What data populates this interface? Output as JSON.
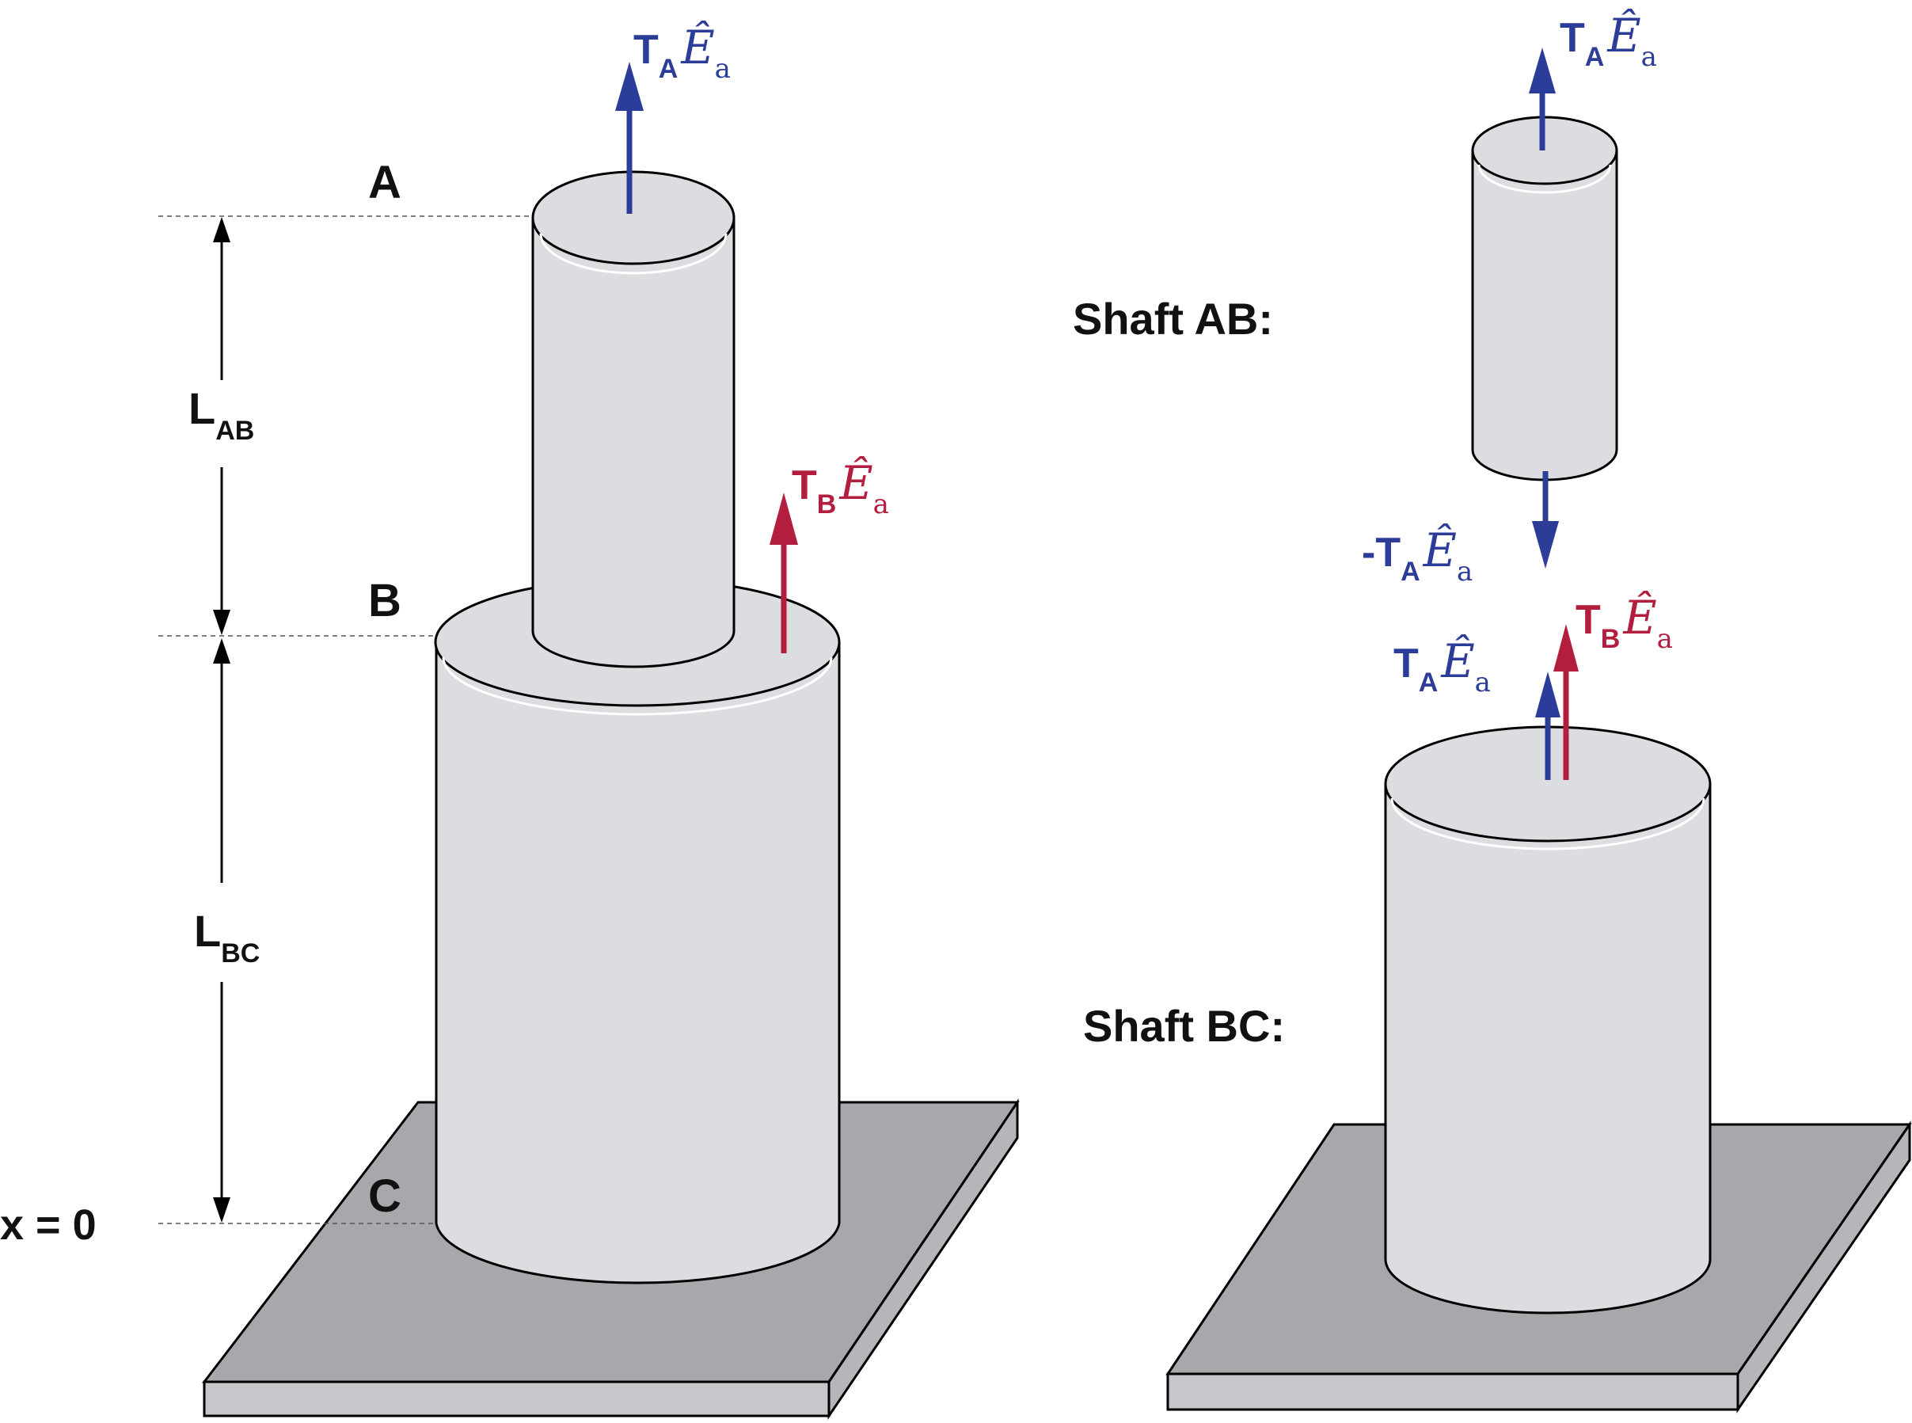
{
  "points": {
    "A": "A",
    "B": "B",
    "C": "C"
  },
  "origin_label": "x = 0",
  "lengths": {
    "ab": {
      "main": "L",
      "sub": "AB"
    },
    "bc": {
      "main": "L",
      "sub": "BC"
    }
  },
  "torques": {
    "ta": {
      "prefix": "T",
      "sub": "A",
      "vec": "Ê",
      "vec_sub": "a"
    },
    "tb": {
      "prefix": "T",
      "sub": "B",
      "vec": "Ê",
      "vec_sub": "a"
    },
    "neg_ta": {
      "prefix": "-T",
      "sub": "A",
      "vec": "Ê",
      "vec_sub": "a"
    }
  },
  "free_body": {
    "shaft_ab_label": "Shaft AB:",
    "shaft_bc_label": "Shaft BC:"
  },
  "colors": {
    "blue": "#2c3d99",
    "red": "#b31d3e",
    "cylinder": "#dcdde0",
    "base_top": "#a7a8ab",
    "base_side": "#c6c7ca",
    "outline": "#000000"
  }
}
